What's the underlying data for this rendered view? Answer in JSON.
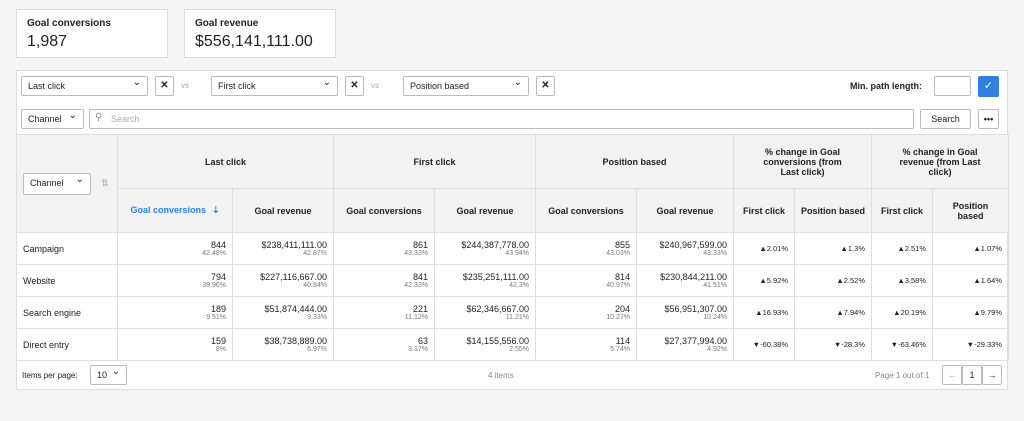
{
  "summary": [
    {
      "label": "Goal conversions",
      "value": "1,987"
    },
    {
      "label": "Goal revenue",
      "value": "$556,141,111.00"
    }
  ],
  "toolbar": {
    "models": [
      "Last click",
      "First click",
      "Position based"
    ],
    "vs": "vs",
    "min_path_label": "Min. path length:"
  },
  "filter": {
    "dimension": "Channel",
    "search_placeholder": "Search",
    "search_button": "Search"
  },
  "table": {
    "dimension": "Channel",
    "groups": [
      "Last click",
      "First click",
      "Position based",
      "% change in Goal conversions (from Last click)",
      "% change in Goal revenue (from Last click)"
    ],
    "subheaders": [
      "Goal conversions",
      "Goal revenue",
      "Goal conversions",
      "Goal revenue",
      "Goal conversions",
      "Goal revenue",
      "First click",
      "Position based",
      "First click",
      "Position based"
    ],
    "rows": [
      {
        "name": "Campaign",
        "cells": [
          {
            "value": "844",
            "share": "42.48%"
          },
          {
            "value": "$238,411,111.00",
            "share": "42.87%"
          },
          {
            "value": "861",
            "share": "43.33%"
          },
          {
            "value": "$244,387,778.00",
            "share": "43.94%"
          },
          {
            "value": "855",
            "share": "43.03%"
          },
          {
            "value": "$240,967,599.00",
            "share": "43.33%"
          }
        ],
        "changes": [
          "▲2.01%",
          "▲1.3%",
          "▲2.51%",
          "▲1.07%"
        ]
      },
      {
        "name": "Website",
        "cells": [
          {
            "value": "794",
            "share": "39.96%"
          },
          {
            "value": "$227,116,667.00",
            "share": "40.84%"
          },
          {
            "value": "841",
            "share": "42.33%"
          },
          {
            "value": "$235,251,111.00",
            "share": "42.3%"
          },
          {
            "value": "814",
            "share": "40.97%"
          },
          {
            "value": "$230,844,211.00",
            "share": "41.51%"
          }
        ],
        "changes": [
          "▲5.92%",
          "▲2.52%",
          "▲3.58%",
          "▲1.64%"
        ]
      },
      {
        "name": "Search engine",
        "cells": [
          {
            "value": "189",
            "share": "9.51%"
          },
          {
            "value": "$51,874,444.00",
            "share": "9.33%"
          },
          {
            "value": "221",
            "share": "11.12%"
          },
          {
            "value": "$62,346,667.00",
            "share": "11.21%"
          },
          {
            "value": "204",
            "share": "10.27%"
          },
          {
            "value": "$56,951,307.00",
            "share": "10.24%"
          }
        ],
        "changes": [
          "▲16.93%",
          "▲7.94%",
          "▲20.19%",
          "▲9.79%"
        ]
      },
      {
        "name": "Direct entry",
        "cells": [
          {
            "value": "159",
            "share": "8%"
          },
          {
            "value": "$38,738,889.00",
            "share": "6.97%"
          },
          {
            "value": "63",
            "share": "3.17%"
          },
          {
            "value": "$14,155,556.00",
            "share": "2.55%"
          },
          {
            "value": "114",
            "share": "5.74%"
          },
          {
            "value": "$27,377,994.00",
            "share": "4.92%"
          }
        ],
        "changes": [
          "▼-60.38%",
          "▼-28.3%",
          "▼-63.46%",
          "▼-29.33%"
        ]
      }
    ]
  },
  "footer": {
    "items_per_page_label": "Items per page:",
    "items_per_page": "10",
    "count": "4 items",
    "page_info": "Page 1 out of 1",
    "page": "1"
  }
}
